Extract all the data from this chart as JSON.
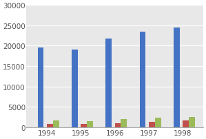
{
  "years": [
    "1994",
    "1995",
    "1996",
    "1997",
    "1998"
  ],
  "blue_values": [
    19500,
    19000,
    21800,
    23500,
    24500
  ],
  "red_values": [
    900,
    800,
    1100,
    1400,
    1700
  ],
  "green_values": [
    1700,
    1600,
    2000,
    2300,
    2500
  ],
  "ylim": [
    0,
    30000
  ],
  "yticks": [
    0,
    5000,
    10000,
    15000,
    20000,
    25000,
    30000
  ],
  "bar_width": 0.18,
  "blue_color": "#4472C4",
  "red_color": "#C0504D",
  "green_color": "#9BBB59",
  "background_color": "#FFFFFF",
  "plot_bg_color": "#E8E8E8",
  "grid_color": "#FFFFFF",
  "tick_color": "#555555",
  "tick_fontsize": 7.5
}
